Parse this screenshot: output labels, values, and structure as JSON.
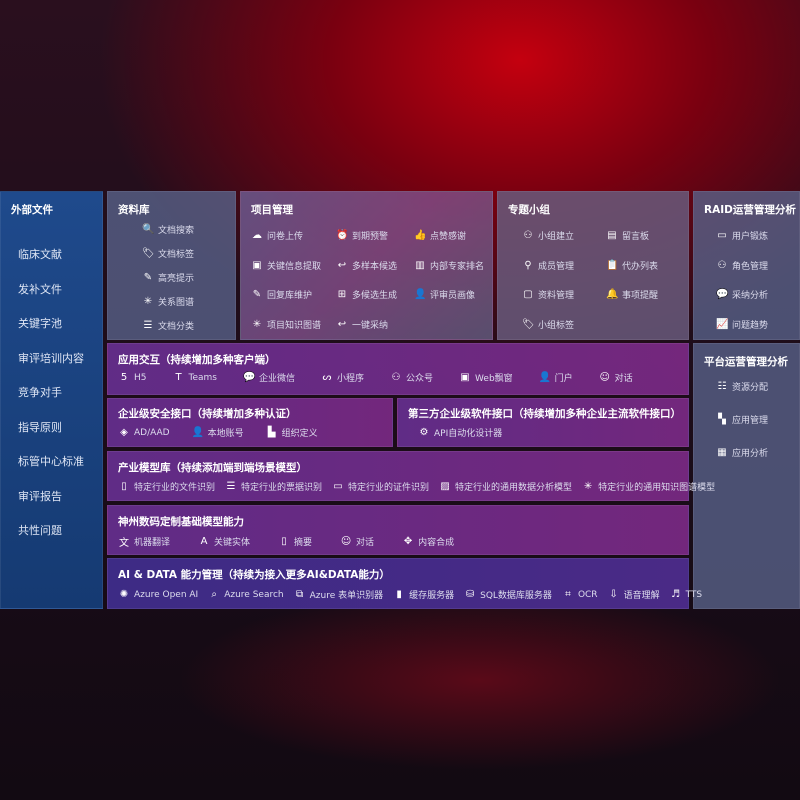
{
  "sidebar": {
    "title": "外部文件",
    "items": [
      "临床文献",
      "发补文件",
      "关键字池",
      "审评培训内容",
      "竞争对手",
      "指导原则",
      "标管中心标准",
      "审评报告",
      "共性问题"
    ]
  },
  "library": {
    "title": "资料库",
    "items": [
      {
        "icon": "file-search-icon",
        "label": "文档搜索"
      },
      {
        "icon": "tag-icon",
        "label": "文档标签"
      },
      {
        "icon": "pen-icon",
        "label": "高亮提示"
      },
      {
        "icon": "graph-icon",
        "label": "关系图谱"
      },
      {
        "icon": "doc-list-icon",
        "label": "文档分类"
      }
    ]
  },
  "project": {
    "title": "项目管理",
    "items": [
      {
        "icon": "cloud-upload-icon",
        "label": "问卷上传"
      },
      {
        "icon": "alarm-icon",
        "label": "到期预警"
      },
      {
        "icon": "thumbs-up-icon",
        "label": "点赞感谢"
      },
      {
        "icon": "window-icon",
        "label": "关键信息提取"
      },
      {
        "icon": "reply-icon",
        "label": "多样本候选"
      },
      {
        "icon": "ranking-icon",
        "label": "内部专家排名"
      },
      {
        "icon": "edit-icon",
        "label": "回复库维护"
      },
      {
        "icon": "puzzle-icon",
        "label": "多候选生成"
      },
      {
        "icon": "person-icon",
        "label": "评审员画像"
      },
      {
        "icon": "graph-icon",
        "label": "项目知识图谱"
      },
      {
        "icon": "reply-icon",
        "label": "一键采纳"
      }
    ]
  },
  "group": {
    "title": "专题小组",
    "items": [
      {
        "icon": "users-icon",
        "label": "小组建立"
      },
      {
        "icon": "bbs-icon",
        "label": "留言板"
      },
      {
        "icon": "user-add-icon",
        "label": "成员管理"
      },
      {
        "icon": "clipboard-icon",
        "label": "代办列表"
      },
      {
        "icon": "folder-icon",
        "label": "资料管理"
      },
      {
        "icon": "bell-icon",
        "label": "事项提醒"
      },
      {
        "icon": "tag-icon",
        "label": "小组标签"
      }
    ]
  },
  "raid": {
    "title": "RAID运营管理分析",
    "items": [
      {
        "icon": "id-card-icon",
        "label": "用户锻炼"
      },
      {
        "icon": "users-icon",
        "label": "角色管理"
      },
      {
        "icon": "qa-icon",
        "label": "采纳分析"
      },
      {
        "icon": "chart-icon",
        "label": "问题趋势"
      }
    ]
  },
  "platform": {
    "title": "平台运营管理分析",
    "items": [
      {
        "icon": "checklist-icon",
        "label": "资源分配"
      },
      {
        "icon": "apps-icon",
        "label": "应用管理"
      },
      {
        "icon": "analytics-icon",
        "label": "应用分析"
      }
    ]
  },
  "app": {
    "title": "应用交互（持续增加多种客户端）",
    "items": [
      {
        "icon": "html5-icon",
        "label": "H5"
      },
      {
        "icon": "teams-icon",
        "label": "Teams"
      },
      {
        "icon": "wechat-icon",
        "label": "企业微信"
      },
      {
        "icon": "miniprogram-icon",
        "label": "小程序"
      },
      {
        "icon": "users-icon",
        "label": "公众号"
      },
      {
        "icon": "window-icon",
        "label": "Web飘窗"
      },
      {
        "icon": "portal-icon",
        "label": "门户"
      },
      {
        "icon": "chat-icon",
        "label": "对话"
      }
    ]
  },
  "security": {
    "title": "企业级安全接口（持续增加多种认证）",
    "items": [
      {
        "icon": "aad-icon",
        "label": "AD/AAD"
      },
      {
        "icon": "local-user-icon",
        "label": "本地账号"
      },
      {
        "icon": "org-icon",
        "label": "组织定义"
      }
    ]
  },
  "thirdparty": {
    "title": "第三方企业级软件接口（持续增加多种企业主流软件接口）",
    "items": [
      {
        "icon": "gear-icon",
        "label": "API自动化设计器"
      }
    ]
  },
  "industry": {
    "title": "产业模型库（持续添加端到端场景模型）",
    "items": [
      {
        "icon": "doc-icon",
        "label": "特定行业的文件识别"
      },
      {
        "icon": "receipt-icon",
        "label": "特定行业的票据识别"
      },
      {
        "icon": "id-card-icon",
        "label": "特定行业的证件识别"
      },
      {
        "icon": "image-icon",
        "label": "特定行业的通用数据分析模型"
      },
      {
        "icon": "graph-icon",
        "label": "特定行业的通用知识图谱模型"
      }
    ]
  },
  "base": {
    "title": "神州数码定制基础模型能力",
    "items": [
      {
        "icon": "translate-icon",
        "label": "机器翻译"
      },
      {
        "icon": "entity-icon",
        "label": "关键实体"
      },
      {
        "icon": "summary-icon",
        "label": "摘要"
      },
      {
        "icon": "chat-icon",
        "label": "对话"
      },
      {
        "icon": "compose-icon",
        "label": "内容合成"
      }
    ]
  },
  "ai": {
    "title": "AI & DATA 能力管理（持续为接入更多AI&DATA能力）",
    "items": [
      {
        "icon": "openai-icon",
        "label": "Azure Open AI"
      },
      {
        "icon": "search-doc-icon",
        "label": "Azure Search"
      },
      {
        "icon": "form-icon",
        "label": "Azure 表单识别器"
      },
      {
        "icon": "cache-icon",
        "label": "缓存服务器"
      },
      {
        "icon": "sql-icon",
        "label": "SQL数据库服务器"
      },
      {
        "icon": "ocr-icon",
        "label": "OCR"
      },
      {
        "icon": "speech-icon",
        "label": "语音理解"
      },
      {
        "icon": "tts-icon",
        "label": "TTS"
      }
    ]
  }
}
